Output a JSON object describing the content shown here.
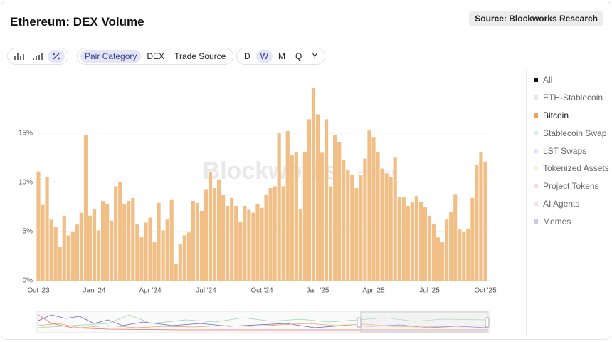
{
  "header": {
    "title": "Ethereum: DEX Volume",
    "source": "Source: Blockworks Research"
  },
  "toolbar": {
    "groupings": [
      "Pair Category",
      "DEX",
      "Trade Source"
    ],
    "active_grouping": 0,
    "periods": [
      "D",
      "W",
      "M",
      "Q",
      "Y"
    ],
    "active_period": 1
  },
  "watermark": [
    "Blockworks",
    "Research"
  ],
  "chart_data": {
    "type": "bar",
    "color": "#f1bf86",
    "categories": [
      "Oct '23",
      null,
      null,
      null,
      null,
      null,
      null,
      null,
      null,
      null,
      null,
      null,
      null,
      "Jan '24",
      null,
      null,
      null,
      null,
      null,
      null,
      null,
      null,
      null,
      null,
      null,
      null,
      "Apr '24",
      null,
      null,
      null,
      null,
      null,
      null,
      null,
      null,
      null,
      null,
      null,
      null,
      "Jul '24",
      null,
      null,
      null,
      null,
      null,
      null,
      null,
      null,
      null,
      null,
      null,
      null,
      "Oct '24",
      null,
      null,
      null,
      null,
      null,
      null,
      null,
      null,
      null,
      null,
      null,
      null,
      "Jan '25",
      null,
      null,
      null,
      null,
      null,
      null,
      null,
      null,
      null,
      null,
      null,
      null,
      "Apr '25",
      null,
      null,
      null,
      null,
      null,
      null,
      null,
      null,
      null,
      null,
      null,
      null,
      "Jul '25",
      null,
      null,
      null,
      null,
      null,
      null,
      null,
      null,
      null,
      null,
      null,
      null,
      "Oct '25"
    ],
    "values": [
      11.1,
      7.7,
      10.5,
      6.2,
      5.5,
      3.4,
      6.6,
      4.6,
      5.0,
      5.7,
      6.9,
      14.8,
      6.6,
      7.3,
      5.1,
      8.1,
      7.8,
      6.1,
      9.6,
      10.0,
      7.8,
      8.1,
      8.4,
      5.8,
      4.4,
      5.9,
      6.4,
      3.9,
      7.9,
      5.1,
      6.2,
      8.2,
      1.7,
      3.7,
      4.6,
      4.9,
      8.1,
      7.9,
      7.1,
      9.3,
      11.0,
      9.4,
      10.3,
      8.7,
      7.6,
      8.4,
      7.6,
      6.0,
      7.6,
      7.2,
      6.9,
      7.8,
      7.4,
      8.7,
      9.4,
      9.6,
      15.0,
      9.6,
      15.2,
      12.8,
      13.1,
      7.3,
      13.1,
      16.4,
      19.6,
      16.9,
      13.0,
      16.4,
      9.6,
      14.8,
      14.1,
      12.3,
      11.3,
      10.8,
      9.4,
      10.7,
      12.4,
      15.3,
      14.6,
      13.1,
      11.4,
      10.9,
      10.5,
      12.5,
      8.5,
      8.5,
      7.6,
      8.0,
      8.6,
      8.0,
      7.5,
      6.6,
      5.8,
      4.4,
      3.9,
      6.2,
      7.0,
      8.8,
      5.2,
      5.0,
      5.3,
      8.4,
      11.8,
      13.1,
      12.1
    ],
    "ylim": [
      0,
      19.9
    ],
    "yticks": [
      {
        "value": 0,
        "label": "0%"
      },
      {
        "value": 5,
        "label": "5%"
      },
      {
        "value": 10,
        "label": "10%"
      },
      {
        "value": 15,
        "label": "15%"
      }
    ],
    "grid": true,
    "legend": [
      {
        "name": "All",
        "color": "#111111",
        "active": false
      },
      {
        "name": "ETH-Stablecoin",
        "color": "#e8e8e8",
        "active": false
      },
      {
        "name": "Bitcoin",
        "color": "#e8a45f",
        "active": true
      },
      {
        "name": "Stablecoin Swap",
        "color": "#d9f1e2",
        "active": false
      },
      {
        "name": "LST Swaps",
        "color": "#dde6fa",
        "active": false
      },
      {
        "name": "Tokenized Assets",
        "color": "#f3f5db",
        "active": false
      },
      {
        "name": "Project Tokens",
        "color": "#f9dcdc",
        "active": false
      },
      {
        "name": "AI Agents",
        "color": "#f6e2ea",
        "active": false
      },
      {
        "name": "Memes",
        "color": "#cac7f0",
        "active": false
      }
    ]
  }
}
